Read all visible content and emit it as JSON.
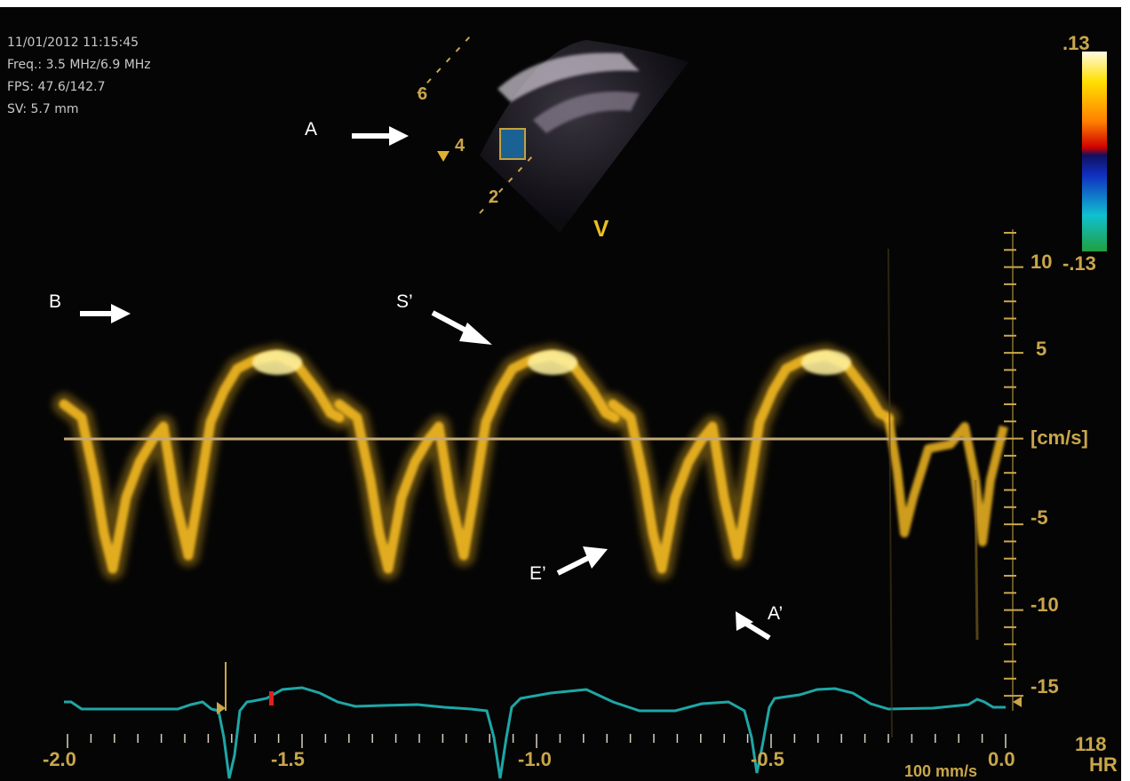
{
  "header": {
    "datetime": "11/01/2012 11:15:45",
    "freq": "Freq.: 3.5 MHz/6.9 MHz",
    "fps": "FPS: 47.6/142.7",
    "sv": "SV: 5.7 mm"
  },
  "annotations": {
    "a": "A",
    "b": "B",
    "s_prime": "S’",
    "e_prime": "E’",
    "a_prime": "A’"
  },
  "sector": {
    "depth_marks": [
      "6",
      "4",
      "2"
    ],
    "view_marker": "V"
  },
  "color_scale": {
    "top": ".13",
    "bottom": "-.13"
  },
  "velocity_axis": {
    "unit": "[cm/s]",
    "ticks": [
      "10",
      "5",
      "-5",
      "-10",
      "-15"
    ]
  },
  "time_axis": {
    "ticks": [
      "-2.0",
      "-1.5",
      "-1.0",
      "-0.5",
      "0.0"
    ]
  },
  "footer": {
    "sweep": "100 mm/s",
    "hr_value": "118",
    "hr_label": "HR"
  },
  "colors": {
    "background": "#050505",
    "doppler": "#f2b820",
    "doppler_core": "#fff3a0",
    "ecg": "#1fa6a6",
    "axis": "#c9a64a",
    "baseline": "#c4a878"
  }
}
